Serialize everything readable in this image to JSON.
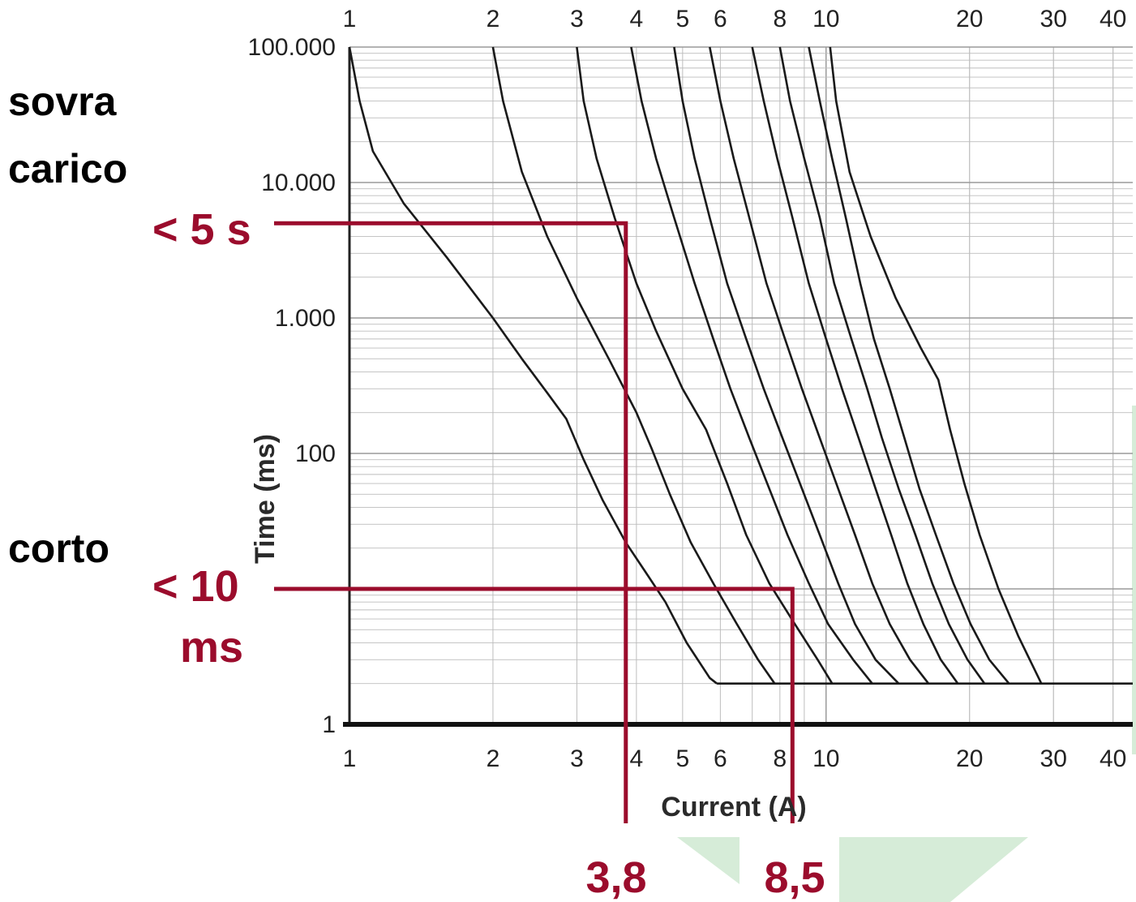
{
  "colors": {
    "curve": "#1a1a1a",
    "grid": "#bdbdbd",
    "annotation": "#9b0c2c",
    "decor": "#d6ecd8"
  },
  "labels": {
    "overload_line1": "sovra",
    "overload_line2": "carico",
    "short_circuit": "corto",
    "overload_time": "< 5 s",
    "short_time_line1": "< 10",
    "short_time_line2": "ms",
    "overload_current": "3,8",
    "short_current": "8,5"
  },
  "chart_data": {
    "type": "line",
    "title": "",
    "xlabel": "Current (A)",
    "ylabel": "Time (ms)",
    "x_scale": "log",
    "y_scale": "log",
    "xlim": [
      1,
      44
    ],
    "ylim": [
      1,
      100000
    ],
    "grid": true,
    "x_ticks": [
      1,
      2,
      3,
      4,
      5,
      6,
      8,
      10,
      20,
      30,
      40
    ],
    "x_tick_labels": [
      "1",
      "2",
      "3",
      "4",
      "5",
      "6",
      "8",
      "10",
      "20",
      "30",
      "40"
    ],
    "y_ticks": [
      1,
      100,
      1000,
      10000,
      100000
    ],
    "y_tick_labels": [
      "1",
      "100",
      "1.000",
      "10.000",
      "100.000"
    ],
    "series": [
      {
        "x": [
          1.0,
          1.05,
          1.12,
          1.3,
          1.6,
          2.0,
          2.3,
          2.6,
          2.85,
          3.1,
          3.4,
          3.8,
          4.2,
          4.6,
          5.1,
          5.7,
          5.9
        ],
        "y": [
          100000,
          40000,
          17000,
          7000,
          2800,
          1000,
          500,
          280,
          180,
          90,
          45,
          22,
          13,
          8,
          4,
          2.2,
          2
        ]
      },
      {
        "x": [
          2.0,
          2.1,
          2.3,
          2.6,
          3.0,
          3.5,
          4.0,
          4.3,
          4.7,
          5.2,
          5.8,
          6.5,
          7.2,
          7.8
        ],
        "y": [
          100000,
          40000,
          12000,
          4000,
          1400,
          500,
          200,
          110,
          50,
          22,
          11,
          5.5,
          3,
          2
        ]
      },
      {
        "x": [
          3.0,
          3.1,
          3.3,
          3.6,
          4.0,
          4.4,
          5.0,
          5.6,
          6.2,
          6.8,
          7.6,
          8.6,
          9.6,
          10.3
        ],
        "y": [
          100000,
          40000,
          15000,
          5500,
          1800,
          800,
          300,
          150,
          60,
          25,
          11,
          5.5,
          3,
          2
        ]
      },
      {
        "x": [
          3.9,
          4.1,
          4.4,
          4.8,
          5.3,
          5.8,
          6.3,
          6.9,
          7.6,
          8.3,
          9.2,
          10.1,
          11.4,
          12.5
        ],
        "y": [
          100000,
          40000,
          15000,
          5500,
          1800,
          700,
          300,
          130,
          55,
          25,
          11,
          5.5,
          3,
          2
        ]
      },
      {
        "x": [
          4.8,
          5.0,
          5.3,
          5.7,
          6.2,
          6.8,
          7.4,
          8.1,
          8.9,
          9.7,
          10.6,
          11.5,
          12.7,
          14.2
        ],
        "y": [
          100000,
          40000,
          15000,
          5500,
          1800,
          700,
          300,
          130,
          55,
          25,
          11,
          5.5,
          3,
          2
        ]
      },
      {
        "x": [
          5.7,
          6.0,
          6.4,
          6.9,
          7.5,
          8.2,
          8.9,
          9.7,
          10.6,
          11.5,
          12.5,
          13.6,
          15.0,
          16.4
        ],
        "y": [
          100000,
          40000,
          15000,
          5500,
          1800,
          700,
          300,
          130,
          55,
          25,
          11,
          5.5,
          3,
          2
        ]
      },
      {
        "x": [
          7.0,
          7.4,
          7.9,
          8.5,
          9.2,
          10.0,
          10.8,
          11.7,
          12.7,
          13.7,
          14.8,
          16.0,
          17.4,
          18.9
        ],
        "y": [
          100000,
          40000,
          15000,
          5500,
          1800,
          700,
          300,
          130,
          55,
          25,
          11,
          5.5,
          3,
          2
        ]
      },
      {
        "x": [
          8.0,
          8.4,
          9.0,
          9.7,
          10.4,
          11.3,
          12.2,
          13.1,
          14.2,
          15.4,
          16.7,
          18.1,
          19.8,
          21.5
        ],
        "y": [
          100000,
          40000,
          15000,
          5500,
          1800,
          700,
          300,
          130,
          55,
          25,
          11,
          5.5,
          3,
          2
        ]
      },
      {
        "x": [
          9.2,
          9.7,
          10.3,
          11.0,
          11.8,
          12.6,
          13.6,
          14.6,
          15.7,
          17.0,
          18.5,
          20.1,
          22.0,
          24.2
        ],
        "y": [
          100000,
          40000,
          15000,
          5500,
          1800,
          700,
          300,
          130,
          55,
          25,
          11,
          5.5,
          3,
          2
        ]
      },
      {
        "x": [
          10.2,
          10.5,
          11.2,
          12.4,
          14.0,
          15.8,
          17.2,
          18.2,
          19.5,
          21.0,
          23.0,
          25.3,
          28.3
        ],
        "y": [
          100000,
          40000,
          12000,
          4000,
          1400,
          600,
          350,
          150,
          60,
          25,
          10,
          4.5,
          2
        ]
      },
      {
        "x": [
          5.9,
          44
        ],
        "y": [
          2,
          2
        ]
      }
    ],
    "annotations": [
      {
        "x": 3.8,
        "y": 5000
      },
      {
        "x": 8.5,
        "y": 10
      }
    ]
  }
}
